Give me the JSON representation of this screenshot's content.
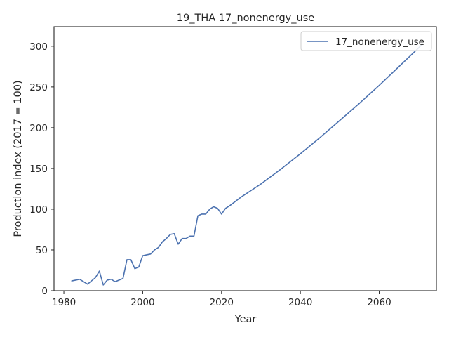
{
  "chart_data": {
    "type": "line",
    "title": "19_THA 17_nonenergy_use",
    "xlabel": "Year",
    "ylabel": "Production index (2017 = 100)",
    "xlim": [
      1977.5,
      2074.5
    ],
    "ylim": [
      0,
      324
    ],
    "xticks": [
      1980,
      2000,
      2020,
      2040,
      2060
    ],
    "yticks": [
      0,
      50,
      100,
      150,
      200,
      250,
      300
    ],
    "grid": false,
    "legend_position": "top-right",
    "series": [
      {
        "name": "17_nonenergy_use",
        "color": "#4c72b0",
        "x": [
          1982,
          1983,
          1984,
          1985,
          1986,
          1987,
          1988,
          1989,
          1990,
          1991,
          1992,
          1993,
          1994,
          1995,
          1996,
          1997,
          1998,
          1999,
          2000,
          2001,
          2002,
          2003,
          2004,
          2005,
          2006,
          2007,
          2008,
          2009,
          2010,
          2011,
          2012,
          2013,
          2014,
          2015,
          2016,
          2017,
          2018,
          2019,
          2020,
          2021,
          2022,
          2025,
          2030,
          2035,
          2040,
          2045,
          2050,
          2055,
          2060,
          2065,
          2070,
          2071
        ],
        "y": [
          12,
          13,
          14,
          11,
          8,
          12,
          16,
          24,
          7,
          13,
          14,
          11,
          13,
          15,
          38,
          38,
          27,
          29,
          43,
          44,
          45,
          50,
          53,
          60,
          64,
          69,
          70,
          57,
          64,
          64,
          67,
          67,
          92,
          94,
          94,
          100,
          103,
          101,
          94,
          101,
          104,
          115,
          131,
          149,
          168,
          188,
          209,
          230,
          252,
          275,
          298,
          303
        ]
      }
    ]
  }
}
